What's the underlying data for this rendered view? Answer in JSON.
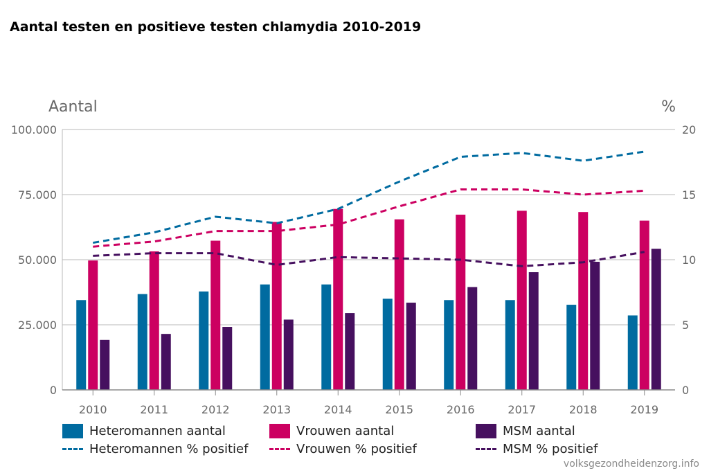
{
  "title": "Aantal testen en positieve testen chlamydia 2010-2019",
  "source": "volksgezondheidenzorg.info",
  "chart_data": {
    "type": "bar",
    "title": "Aantal testen en positieve testen chlamydia 2010-2019",
    "ylabel_left": "Aantal",
    "ylabel_right": "%",
    "categories": [
      "2010",
      "2011",
      "2012",
      "2013",
      "2014",
      "2015",
      "2016",
      "2017",
      "2018",
      "2019"
    ],
    "ylim_left": [
      0,
      100000
    ],
    "ylim_right": [
      0,
      20
    ],
    "yticks_left": [
      "0",
      "25.000",
      "50.000",
      "75.000",
      "100.000"
    ],
    "yticks_right": [
      "0",
      "5",
      "10",
      "15",
      "20"
    ],
    "grid": true,
    "legend_position": "bottom",
    "bar_series": [
      {
        "name": "Heteromannen aantal",
        "color": "#006ba0",
        "values": [
          34500,
          36800,
          37800,
          40500,
          40500,
          35000,
          34500,
          34500,
          32700,
          28600
        ]
      },
      {
        "name": "Vrouwen aantal",
        "color": "#cc0061",
        "values": [
          49700,
          53200,
          57300,
          64500,
          69500,
          65500,
          67300,
          68800,
          68300,
          65000
        ]
      },
      {
        "name": "MSM aantal",
        "color": "#46105f",
        "values": [
          19200,
          21500,
          24200,
          27000,
          29500,
          33500,
          39500,
          45200,
          49200,
          54200
        ]
      }
    ],
    "line_series": [
      {
        "name": "Heteromannen % positief",
        "color": "#006ba0",
        "values": [
          11.3,
          12.1,
          13.3,
          12.8,
          13.9,
          16.0,
          17.9,
          18.2,
          17.6,
          18.3
        ]
      },
      {
        "name": "Vrouwen % positief",
        "color": "#cc0061",
        "values": [
          11.0,
          11.4,
          12.2,
          12.2,
          12.7,
          14.1,
          15.4,
          15.4,
          15.0,
          15.3
        ]
      },
      {
        "name": "MSM % positief",
        "color": "#46105f",
        "values": [
          10.3,
          10.5,
          10.5,
          9.6,
          10.2,
          10.1,
          10.0,
          9.5,
          9.8,
          10.6
        ]
      }
    ]
  }
}
